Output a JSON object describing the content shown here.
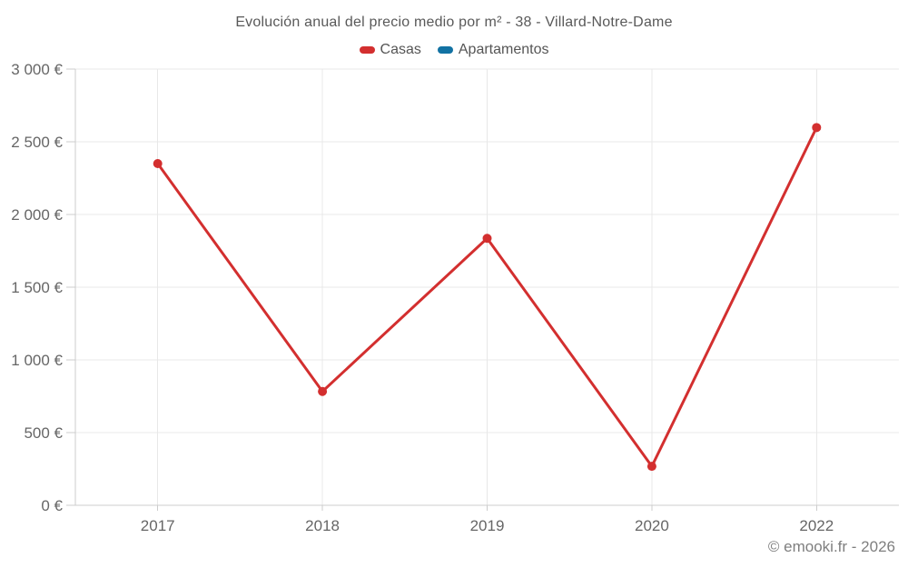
{
  "header": {
    "title": "Evolución anual del precio medio por m² - 38 - Villard-Notre-Dame"
  },
  "footer": {
    "copyright": "© emooki.fr - 2026"
  },
  "chart_data": {
    "type": "line",
    "title": "Evolución anual del precio medio por m² - 38 - Villard-Notre-Dame",
    "xlabel": "",
    "ylabel": "",
    "categories": [
      "2017",
      "2018",
      "2019",
      "2020",
      "2022"
    ],
    "series": [
      {
        "name": "Casas",
        "color": "#d32f2f",
        "values": [
          2350,
          783,
          1836,
          268,
          2598
        ],
        "marker": "circle"
      },
      {
        "name": "Apartamentos",
        "color": "#1272a3",
        "values": [],
        "marker": "circle"
      }
    ],
    "ylim": [
      0,
      3000
    ],
    "yticks": [
      {
        "value": 0,
        "label": "0 €"
      },
      {
        "value": 500,
        "label": "500 €"
      },
      {
        "value": 1000,
        "label": "1 000 €"
      },
      {
        "value": 1500,
        "label": "1 500 €"
      },
      {
        "value": 2000,
        "label": "2 000 €"
      },
      {
        "value": 2500,
        "label": "2 500 €"
      },
      {
        "value": 3000,
        "label": "3 000 €"
      }
    ],
    "grid": true,
    "legend_position": "top"
  },
  "colors": {
    "background": "#ffffff",
    "grid": "#e8e8e8",
    "axis": "#cccccc",
    "title_text": "#595959",
    "legend_text": "#555555",
    "axis_text": "#666666",
    "copyright_text": "#7f7f7f"
  }
}
